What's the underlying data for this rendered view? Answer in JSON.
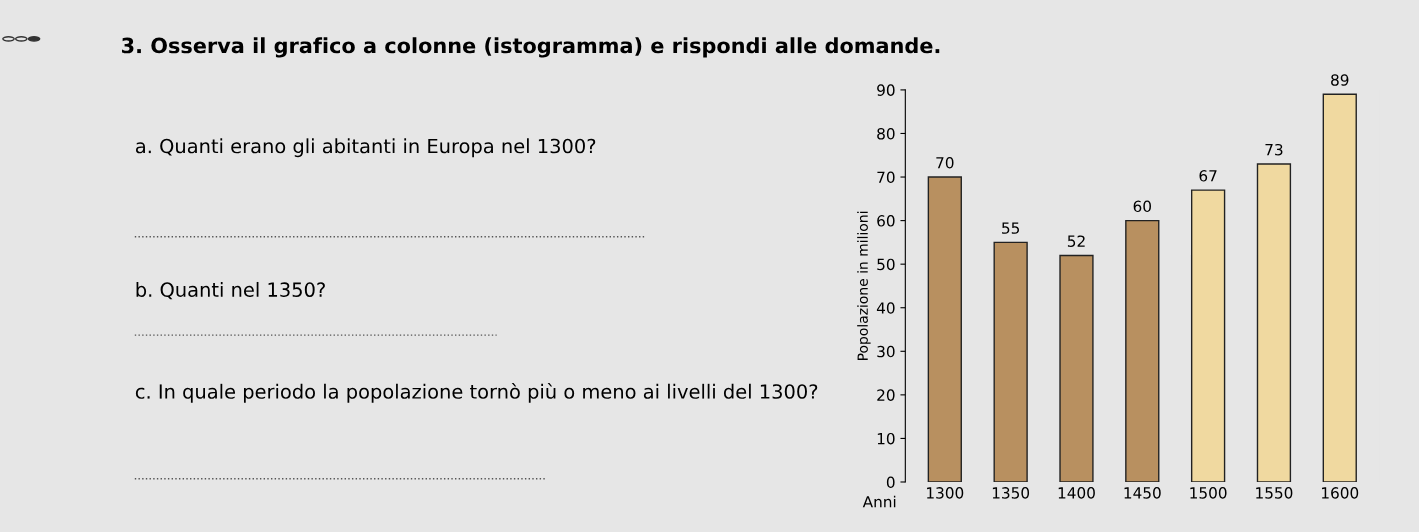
{
  "chart_data": {
    "type": "bar",
    "title": "3. Osserva il grafico a colonne (istogramma) e rispondi alle domande.",
    "annotations": [
      "a. Quanti erano gli abitanti in Europa nel 1300?",
      "b. Quanti nel 1350?",
      "c. In quale periodo la popolazione tornò più o meno ai livelli del 1300?"
    ],
    "xlabel": "Anni",
    "ylabel": "Popolazione in milioni",
    "categories": [
      "1300",
      "1350",
      "1400",
      "1450",
      "1500",
      "1550",
      "1600"
    ],
    "values": [
      70,
      55,
      52,
      60,
      67,
      73,
      89
    ],
    "colors": [
      "#b89060",
      "#b89060",
      "#b89060",
      "#b89060",
      "#f0d9a0",
      "#f0d9a0",
      "#f0d9a0"
    ],
    "ylim": [
      0,
      90
    ],
    "yticks": [
      0,
      10,
      20,
      30,
      40,
      50,
      60,
      70,
      80,
      90
    ],
    "data_labels": true,
    "grid": false
  }
}
